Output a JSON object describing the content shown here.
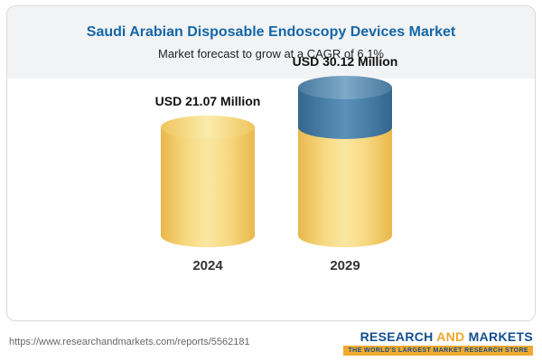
{
  "header": {
    "title": "Saudi Arabian Disposable Endoscopy Devices Market",
    "subtitle": "Market forecast to grow at a CAGR of 6.1%"
  },
  "chart_data": {
    "type": "bar",
    "title": "Saudi Arabian Disposable Endoscopy Devices Market",
    "subtitle": "Market forecast to grow at a CAGR of 6.1%",
    "categories": [
      "2024",
      "2029"
    ],
    "values": [
      21.07,
      30.12
    ],
    "value_labels": [
      "USD 21.07 Million",
      "USD 30.12 Million"
    ],
    "unit": "USD Million",
    "cagr_pct": 6.1,
    "series_note": "Cylinder bars; 2029 bar shows base value in gold with incremental growth segment in blue on top",
    "colors": {
      "base_gold": "#f6d678",
      "growth_blue": "#4c80a8"
    },
    "legend": "none",
    "grid": false
  },
  "footer": {
    "url": "https://www.researchandmarkets.com/reports/5562181",
    "logo": {
      "word1": "RESEARCH",
      "word2": "AND",
      "word3": "MARKETS",
      "tagline": "THE WORLD'S LARGEST MARKET RESEARCH STORE"
    }
  }
}
